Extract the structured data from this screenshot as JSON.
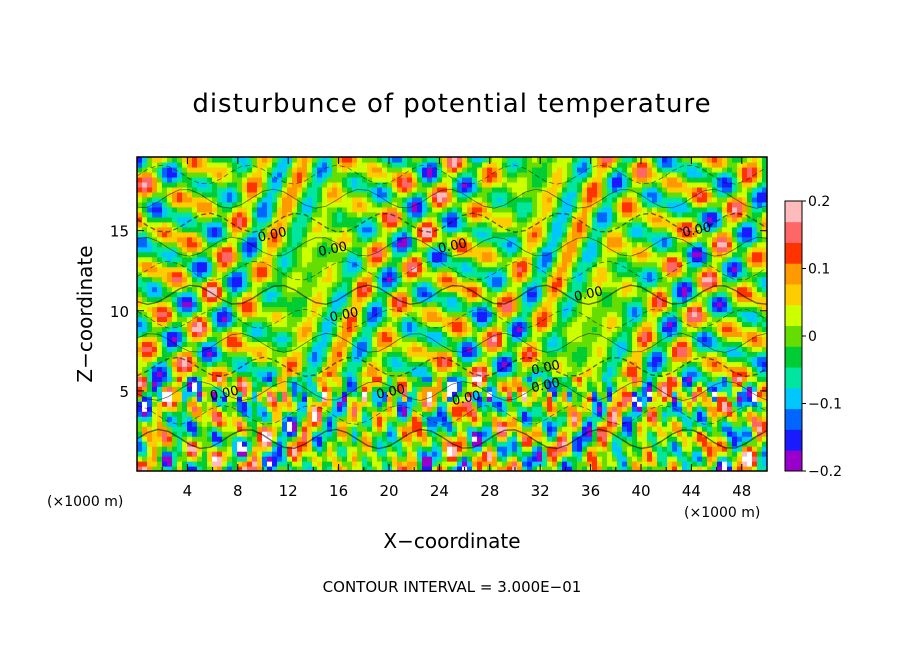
{
  "chart_data": {
    "type": "heatmap",
    "title": "disturbunce of potential temperature",
    "xlabel": "X−coordinate",
    "ylabel": "Z−coordinate",
    "x_unit": "(×1000 m)",
    "z_unit": "(×1000 m)",
    "xlim": [
      0,
      50
    ],
    "ylim": [
      0,
      19.6
    ],
    "x_ticks": [
      4,
      8,
      12,
      16,
      20,
      24,
      28,
      32,
      36,
      40,
      44,
      48
    ],
    "y_ticks": [
      5,
      10,
      15
    ],
    "colorbar": {
      "min": -0.2,
      "max": 0.2,
      "tick_values": [
        0.2,
        0.1,
        0,
        -0.1,
        -0.2
      ],
      "tick_labels": [
        "0.2",
        "0.1",
        "0",
        "−0.1",
        "−0.2"
      ],
      "colors": [
        "#9900cc",
        "#1a1aff",
        "#0066ff",
        "#00c8ff",
        "#00e6a0",
        "#00cc33",
        "#66dd00",
        "#ccff00",
        "#ffcc00",
        "#ff9900",
        "#ff3300",
        "#ff6666",
        "#ffbbbb"
      ]
    },
    "contour_interval_text": "CONTOUR INTERVAL = 3.000E−01",
    "contour_labels": [
      {
        "text": "0.00",
        "x": 10.8,
        "z": 14.5
      },
      {
        "text": "0.00",
        "x": 15.6,
        "z": 13.6
      },
      {
        "text": "0.00",
        "x": 25.1,
        "z": 13.8
      },
      {
        "text": "0.00",
        "x": 35.9,
        "z": 10.8
      },
      {
        "text": "0.00",
        "x": 44.5,
        "z": 14.8
      },
      {
        "text": "0.00",
        "x": 16.5,
        "z": 9.5
      },
      {
        "text": "0.00",
        "x": 32.5,
        "z": 6.2
      },
      {
        "text": "0.00",
        "x": 32.5,
        "z": 5.1
      },
      {
        "text": "0.00",
        "x": 7.0,
        "z": 4.6
      },
      {
        "text": "0.00",
        "x": 20.2,
        "z": 4.7
      },
      {
        "text": "0.00",
        "x": 26.2,
        "z": 4.3
      }
    ]
  }
}
